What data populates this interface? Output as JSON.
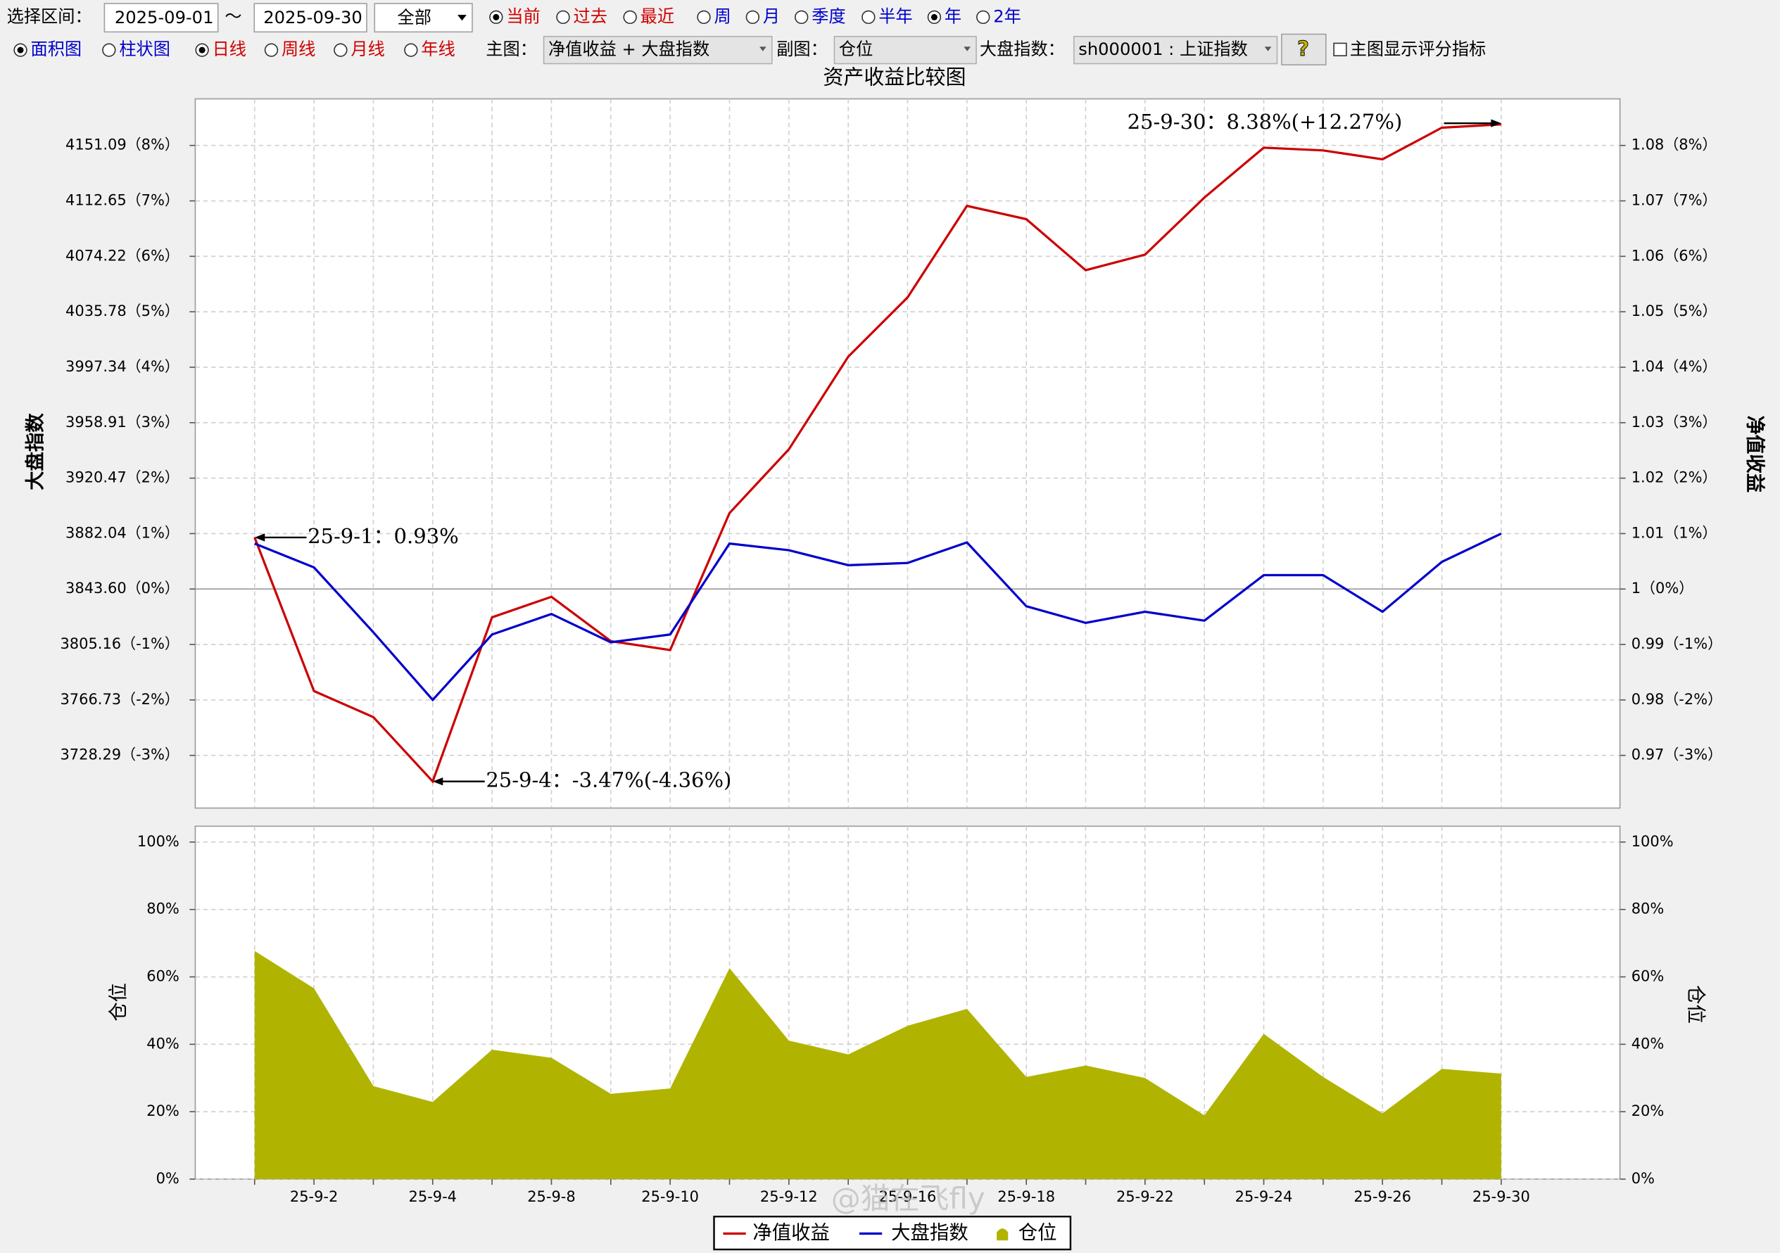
{
  "toolbar": {
    "range_label": "选择区间：",
    "start": "2025-09-01",
    "tilde": "～",
    "end": "2025-09-30",
    "scope": "全部",
    "periods": [
      {
        "label": "当前",
        "checked": true
      },
      {
        "label": "过去",
        "checked": false
      },
      {
        "label": "最近",
        "checked": false
      },
      {
        "label": "周",
        "checked": false
      },
      {
        "label": "月",
        "checked": false
      },
      {
        "label": "季度",
        "checked": false
      },
      {
        "label": "半年",
        "checked": false
      },
      {
        "label": "年",
        "checked": true
      },
      {
        "label": "2年",
        "checked": false
      }
    ],
    "chart_styles": [
      {
        "label": "面积图",
        "checked": true
      },
      {
        "label": "柱状图",
        "checked": false
      }
    ],
    "lines": [
      {
        "label": "日线",
        "checked": true
      },
      {
        "label": "周线",
        "checked": false
      },
      {
        "label": "月线",
        "checked": false
      },
      {
        "label": "年线",
        "checked": false
      }
    ],
    "main_label": "主图：",
    "main_value": "净值收益 + 大盘指数",
    "sub_label": "副图：",
    "sub_value": "仓位",
    "index_label": "大盘指数：",
    "index_value": "sh000001 : 上证指数",
    "help": "?",
    "score_option": "主图显示评分指标"
  },
  "watermark": "@猫在飞fly",
  "chart_data": [
    {
      "type": "line",
      "title": "资产收益比较图",
      "ylabel": "大盘指数",
      "y2label": "净值收益",
      "grid": true,
      "series": [
        {
          "name": "净值收益",
          "color": "#cc0000",
          "axis": "y2",
          "values": [
            0.93,
            -1.84,
            -2.31,
            -3.47,
            -0.51,
            -0.14,
            -0.94,
            -1.1,
            1.37,
            2.52,
            4.19,
            5.26,
            6.91,
            6.67,
            5.75,
            6.03,
            7.06,
            7.96,
            7.91,
            7.75,
            8.32,
            8.38
          ]
        },
        {
          "name": "大盘指数",
          "color": "#0000cc",
          "values": [
            0.82,
            0.39,
            -0.78,
            -2.0,
            -0.82,
            -0.45,
            -0.96,
            -0.82,
            0.82,
            0.7,
            0.43,
            0.47,
            0.84,
            -0.31,
            -0.61,
            -0.41,
            -0.57,
            0.25,
            0.25,
            -0.41,
            0.49,
            1.0
          ]
        }
      ],
      "annotations": [
        "25-9-1：0.93%",
        "25-9-4：-3.47%(-4.36%)",
        "25-9-30：8.38%(+12.27%)"
      ],
      "ylim": [
        -3.95,
        8.84
      ],
      "yticks": [
        {
          "value": -3,
          "label": "3728.29（-3%）"
        },
        {
          "value": -2,
          "label": "3766.73（-2%）"
        },
        {
          "value": -1,
          "label": "3805.16（-1%）"
        },
        {
          "value": 0,
          "label": "3843.60（0%）"
        },
        {
          "value": 1,
          "label": "3882.04（1%）"
        },
        {
          "value": 2,
          "label": "3920.47（2%）"
        },
        {
          "value": 3,
          "label": "3958.91（3%）"
        },
        {
          "value": 4,
          "label": "3997.34（4%）"
        },
        {
          "value": 5,
          "label": "4035.78（5%）"
        },
        {
          "value": 6,
          "label": "4074.22（6%）"
        },
        {
          "value": 7,
          "label": "4112.65（7%）"
        },
        {
          "value": 8,
          "label": "4151.09（8%）"
        }
      ],
      "y2lim": [
        -3.95,
        8.84
      ],
      "y2ticks": [
        {
          "value": -3,
          "label": "0.97（-3%）"
        },
        {
          "value": -2,
          "label": "0.98（-2%）"
        },
        {
          "value": -1,
          "label": "0.99（-1%）"
        },
        {
          "value": 0,
          "label": "1（0%）"
        },
        {
          "value": 1,
          "label": "1.01（1%）"
        },
        {
          "value": 2,
          "label": "1.02（2%）"
        },
        {
          "value": 3,
          "label": "1.03（3%）"
        },
        {
          "value": 4,
          "label": "1.04（4%）"
        },
        {
          "value": 5,
          "label": "1.05（5%）"
        },
        {
          "value": 6,
          "label": "1.06（6%）"
        },
        {
          "value": 7,
          "label": "1.07（7%）"
        },
        {
          "value": 8,
          "label": "1.08（8%）"
        }
      ]
    },
    {
      "type": "area",
      "ylabel": "仓位",
      "y2label": "仓位",
      "grid": true,
      "categories": [
        null,
        "25-9-2",
        null,
        "25-9-4",
        null,
        "25-9-8",
        null,
        "25-9-10",
        null,
        "25-9-12",
        null,
        "25-9-16",
        null,
        "25-9-18",
        null,
        "25-9-22",
        null,
        "25-9-24",
        null,
        "25-9-26",
        null,
        "25-9-30"
      ],
      "series": [
        {
          "name": "仓位",
          "color": "#b0b400",
          "values": [
            67.7,
            56.6,
            27.6,
            22.9,
            38.4,
            36.0,
            25.3,
            26.9,
            62.6,
            41.1,
            37.0,
            45.5,
            50.5,
            30.3,
            33.7,
            30.0,
            18.9,
            43.1,
            30.3,
            19.5,
            32.7,
            31.3
          ]
        }
      ],
      "ylim": [
        0,
        104.7
      ],
      "yticks": [
        {
          "value": 0,
          "label": "0%"
        },
        {
          "value": 20,
          "label": "20%"
        },
        {
          "value": 40,
          "label": "40%"
        },
        {
          "value": 60,
          "label": "60%"
        },
        {
          "value": 80,
          "label": "80%"
        },
        {
          "value": 100,
          "label": "100%"
        }
      ],
      "y2lim": [
        0,
        104.7
      ],
      "y2ticks": [
        {
          "value": 0,
          "label": "0%"
        },
        {
          "value": 20,
          "label": "20%"
        },
        {
          "value": 40,
          "label": "40%"
        },
        {
          "value": 60,
          "label": "60%"
        },
        {
          "value": 80,
          "label": "80%"
        },
        {
          "value": 100,
          "label": "100%"
        }
      ]
    }
  ]
}
